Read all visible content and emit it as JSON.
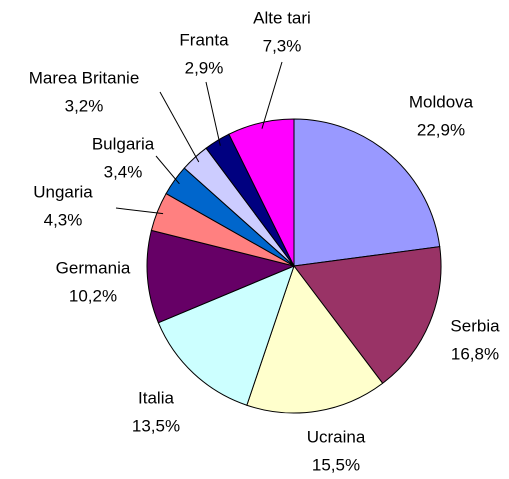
{
  "chart_data": {
    "type": "pie",
    "categories": [
      "Moldova",
      "Serbia",
      "Ucraina",
      "Italia",
      "Germania",
      "Ungaria",
      "Bulgaria",
      "Marea Britanie",
      "Franta",
      "Alte tari"
    ],
    "values": [
      22.9,
      16.8,
      15.5,
      13.5,
      10.2,
      4.3,
      3.4,
      3.2,
      2.9,
      7.3
    ],
    "value_labels": [
      "22,9%",
      "16,8%",
      "15,5%",
      "13,5%",
      "10,2%",
      "4,3%",
      "3,4%",
      "3,2%",
      "2,9%",
      "7,3%"
    ],
    "colors": [
      "#9999ff",
      "#993366",
      "#ffffcc",
      "#ccffff",
      "#660066",
      "#ff8080",
      "#0066cc",
      "#ccccff",
      "#000080",
      "#ff00ff"
    ]
  }
}
